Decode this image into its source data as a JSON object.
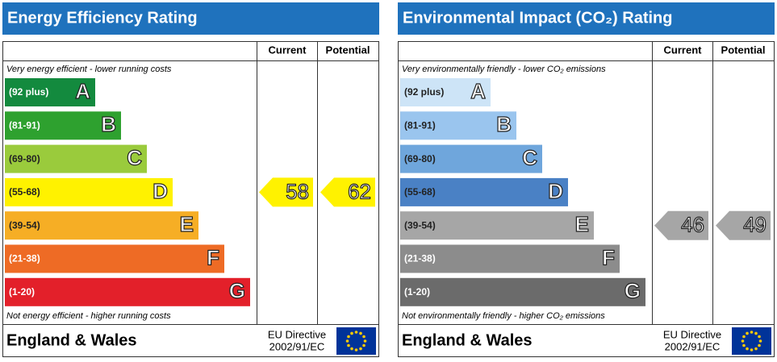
{
  "chart_data": [
    {
      "type": "epc",
      "title": "Energy Efficiency Rating",
      "columns": [
        "Current",
        "Potential"
      ],
      "top_note": "Very energy efficient - lower running costs",
      "bottom_note": "Not energy efficient - higher running costs",
      "bands": [
        {
          "range": "(92 plus)",
          "letter": "A",
          "color": "#138a3e",
          "text_color": "#ffffff"
        },
        {
          "range": "(81-91)",
          "letter": "B",
          "color": "#2ea12f",
          "text_color": "#ffffff"
        },
        {
          "range": "(69-80)",
          "letter": "C",
          "color": "#9acb3c",
          "text_color": "#222222"
        },
        {
          "range": "(55-68)",
          "letter": "D",
          "color": "#fff200",
          "text_color": "#222222"
        },
        {
          "range": "(39-54)",
          "letter": "E",
          "color": "#f6ae25",
          "text_color": "#222222"
        },
        {
          "range": "(21-38)",
          "letter": "F",
          "color": "#ee6b25",
          "text_color": "#ffffff"
        },
        {
          "range": "(1-20)",
          "letter": "G",
          "color": "#e3202a",
          "text_color": "#ffffff"
        }
      ],
      "current": 58,
      "potential": 62,
      "footer": "England & Wales",
      "directive": [
        "EU Directive",
        "2002/91/EC"
      ]
    },
    {
      "type": "epc",
      "title": "Environmental Impact (CO₂) Rating",
      "columns": [
        "Current",
        "Potential"
      ],
      "top_note": "Very environmentally friendly - lower CO₂ emissions",
      "bottom_note": "Not environmentally friendly - higher CO₂ emissions",
      "bands": [
        {
          "range": "(92 plus)",
          "letter": "A",
          "color": "#cde4f7",
          "text_color": "#222222"
        },
        {
          "range": "(81-91)",
          "letter": "B",
          "color": "#9ac5ee",
          "text_color": "#222222"
        },
        {
          "range": "(69-80)",
          "letter": "C",
          "color": "#6fa6dc",
          "text_color": "#222222"
        },
        {
          "range": "(55-68)",
          "letter": "D",
          "color": "#4a81c5",
          "text_color": "#222222"
        },
        {
          "range": "(39-54)",
          "letter": "E",
          "color": "#a6a6a6",
          "text_color": "#222222"
        },
        {
          "range": "(21-38)",
          "letter": "F",
          "color": "#8c8c8c",
          "text_color": "#ffffff"
        },
        {
          "range": "(1-20)",
          "letter": "G",
          "color": "#6b6b6b",
          "text_color": "#ffffff"
        }
      ],
      "current": 46,
      "potential": 49,
      "footer": "England & Wales",
      "directive": [
        "EU Directive",
        "2002/91/EC"
      ]
    }
  ]
}
